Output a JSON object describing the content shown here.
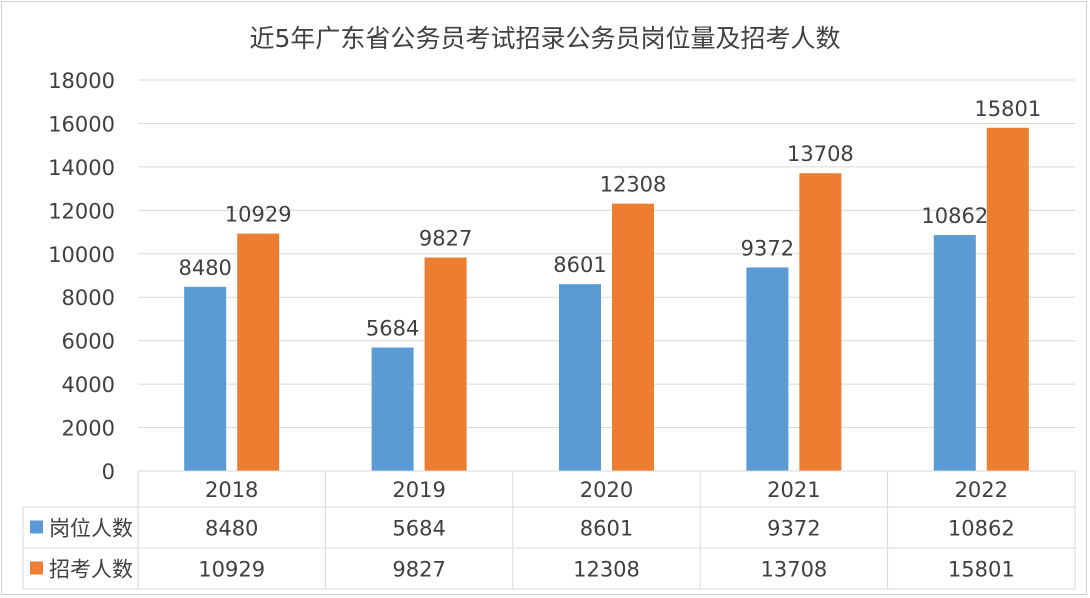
{
  "chart_data": {
    "type": "bar",
    "title": "近5年广东省公务员考试招录公务员岗位量及招考人数",
    "categories": [
      "2018",
      "2019",
      "2020",
      "2021",
      "2022"
    ],
    "series": [
      {
        "name": "岗位人数",
        "color": "#5b9bd5",
        "values": [
          8480,
          5684,
          8601,
          9372,
          10862
        ]
      },
      {
        "name": "招考人数",
        "color": "#ed7d31",
        "values": [
          10929,
          9827,
          12308,
          13708,
          15801
        ]
      }
    ],
    "ylim": [
      0,
      18000
    ],
    "yticks": [
      0,
      2000,
      4000,
      6000,
      8000,
      10000,
      12000,
      14000,
      16000,
      18000
    ],
    "grid": true,
    "legend": "data-table-bottom",
    "data_labels": true
  }
}
